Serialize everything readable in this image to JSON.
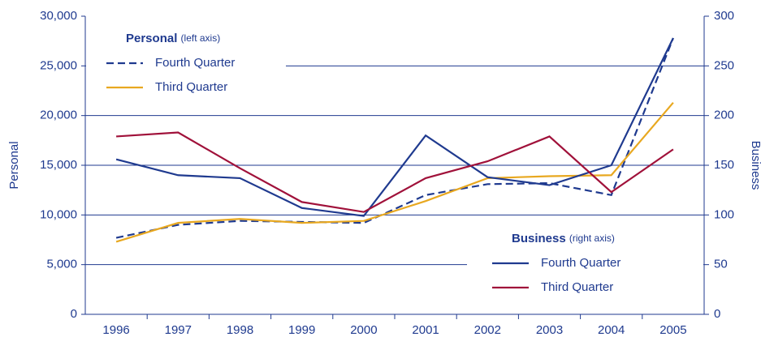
{
  "chart_data": {
    "type": "line",
    "categories": [
      "1996",
      "1997",
      "1998",
      "1999",
      "2000",
      "2001",
      "2002",
      "2003",
      "2004",
      "2005"
    ],
    "ylabel": "Personal",
    "y2label": "Business",
    "ylim": [
      0,
      30000
    ],
    "yticks": [
      0,
      {
        "value": 5000,
        "label": "5,000"
      },
      {
        "value": 10000,
        "label": "10,000"
      },
      {
        "value": 15000,
        "label": "15,000"
      },
      {
        "value": 20000,
        "label": "20,000"
      },
      {
        "value": 25000,
        "label": "25,000"
      },
      {
        "value": 30000,
        "label": "30,000"
      }
    ],
    "y2lim": [
      0,
      300
    ],
    "y2ticks": [
      0,
      50,
      100,
      150,
      200,
      250,
      300
    ],
    "grid": true,
    "legend_groups": [
      {
        "title": "Personal",
        "note": "(left axis)",
        "axis": "y"
      },
      {
        "title": "Business",
        "note": "(right axis)",
        "axis": "y2"
      }
    ],
    "series": [
      {
        "name": "Fourth Quarter",
        "axis": "y",
        "color": "#1f3a8f",
        "dashed": true,
        "values": [
          7700,
          9000,
          9400,
          9300,
          9200,
          12000,
          13100,
          13200,
          12000,
          27800
        ]
      },
      {
        "name": "Third Quarter",
        "axis": "y",
        "color": "#e8a820",
        "dashed": false,
        "values": [
          7300,
          9200,
          9600,
          9200,
          9400,
          11400,
          13700,
          13900,
          14000,
          21300
        ]
      },
      {
        "name": "Fourth Quarter",
        "axis": "y2",
        "color": "#1f3a8f",
        "dashed": false,
        "values": [
          156,
          140,
          137,
          107,
          99,
          180,
          138,
          130,
          150,
          278
        ]
      },
      {
        "name": "Third Quarter",
        "axis": "y2",
        "color": "#a0113a",
        "dashed": false,
        "values": [
          179,
          183,
          147,
          113,
          103,
          137,
          154,
          179,
          123,
          166
        ]
      }
    ]
  }
}
